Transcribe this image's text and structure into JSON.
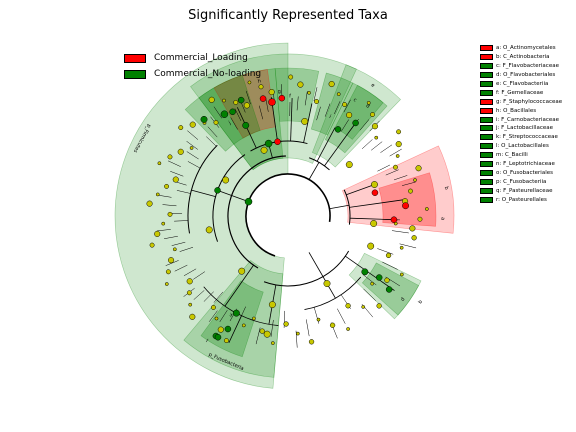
{
  "title": "Significantly Represented Taxa",
  "classes": [
    {
      "name": "Commercial_Loading",
      "color": "#ff0000"
    },
    {
      "name": "Commercial_No-loading",
      "color": "#008000"
    }
  ],
  "colors": {
    "red_sector": "#ff0000",
    "green_sector": "#008000",
    "yellow_node": "#c8c800"
  },
  "taxa": [
    {
      "letter": "a",
      "label": "a: O_Actinomycetales",
      "class": 0
    },
    {
      "letter": "b",
      "label": "b: C_Actinobacteria",
      "class": 0
    },
    {
      "letter": "c",
      "label": "c: F_Flavobacteriaceae",
      "class": 1
    },
    {
      "letter": "d",
      "label": "d: O_Flavobacteriales",
      "class": 1
    },
    {
      "letter": "e",
      "label": "e: C_Flavobacteriia",
      "class": 1
    },
    {
      "letter": "f",
      "label": "f: F_Gemellaceae",
      "class": 1
    },
    {
      "letter": "g",
      "label": "g: F_Staphylococcaceae",
      "class": 0
    },
    {
      "letter": "h",
      "label": "h: O_Bacillales",
      "class": 0
    },
    {
      "letter": "i",
      "label": "i: F_Carnobacteriaceae",
      "class": 1
    },
    {
      "letter": "j",
      "label": "j: F_Lactobacillaceae",
      "class": 1
    },
    {
      "letter": "k",
      "label": "k: F_Streptococcaceae",
      "class": 1
    },
    {
      "letter": "l",
      "label": "l: O_Lactobacillales",
      "class": 1
    },
    {
      "letter": "m",
      "label": "m: C_Bacilli",
      "class": 1
    },
    {
      "letter": "n",
      "label": "n: F_Leptotrichiaceae",
      "class": 1
    },
    {
      "letter": "o",
      "label": "o: O_Fusobacteriales",
      "class": 1
    },
    {
      "letter": "p",
      "label": "p: C_Fusobacteriia",
      "class": 1
    },
    {
      "letter": "q",
      "label": "q: F_Pasteurellaceae",
      "class": 1
    },
    {
      "letter": "r",
      "label": "r: O_Pasteurellales",
      "class": 1
    }
  ],
  "phylum_labels": {
    "firmicutes": "p_Firmicutes",
    "fusobacteria": "p_Fusobacteria"
  }
}
